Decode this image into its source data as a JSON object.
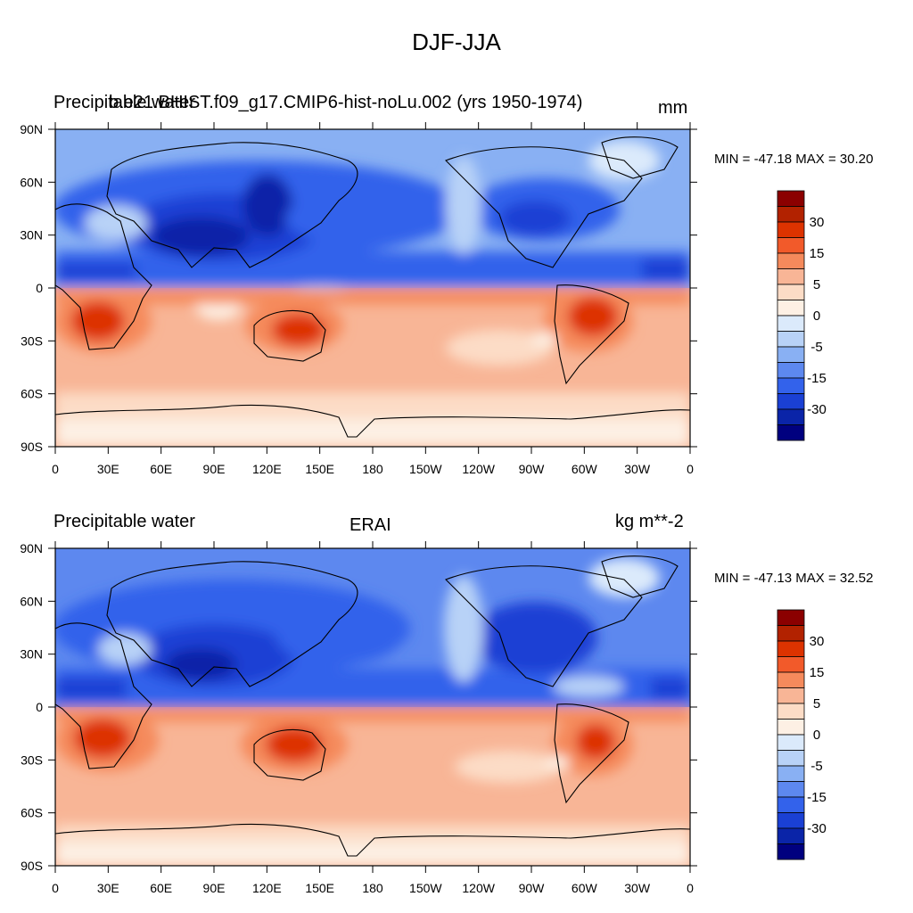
{
  "title": "DJF-JJA",
  "panels": [
    {
      "left_label": "Precipitable water",
      "center_label": "b.e21.BHIST.f09_g17.CMIP6-hist-noLu.002 (yrs 1950-1974)",
      "units": "mm",
      "stats": "MIN = -47.18 MAX =  30.20"
    },
    {
      "left_label": "Precipitable water",
      "center_label": "ERAI",
      "units": "kg m**-2",
      "stats": "MIN = -47.13 MAX =  32.52"
    }
  ],
  "axes": {
    "lat_labels": [
      "90N",
      "60N",
      "30N",
      "0",
      "30S",
      "60S",
      "90S"
    ],
    "lon_labels": [
      "0",
      "30E",
      "60E",
      "90E",
      "120E",
      "150E",
      "180",
      "150W",
      "120W",
      "90W",
      "60W",
      "30W",
      "0"
    ]
  },
  "colorbar": {
    "labels": [
      "30",
      "15",
      "5",
      "0",
      "-5",
      "-15",
      "-30"
    ],
    "colors": [
      "#8b0000",
      "#b22200",
      "#dd3300",
      "#f25a2a",
      "#f58a5c",
      "#f8b596",
      "#fcdcc6",
      "#fdf0e4",
      "#dbeafb",
      "#b8d2f7",
      "#89b0f3",
      "#5d88ef",
      "#3362eb",
      "#1a40d4",
      "#0a24a8",
      "#00007f"
    ]
  },
  "chart_data": [
    {
      "type": "heatmap",
      "title": "DJF-JJA",
      "subtitle": "b.e21.BHIST.f09_g17.CMIP6-hist-noLu.002 (yrs 1950-1974)",
      "variable": "Precipitable water",
      "units": "mm",
      "min": -47.18,
      "max": 30.2,
      "xlim": [
        0,
        360
      ],
      "ylim": [
        -90,
        90
      ],
      "contour_levels": [
        -30,
        -15,
        -5,
        0,
        5,
        15,
        30
      ]
    },
    {
      "type": "heatmap",
      "title": "DJF-JJA",
      "subtitle": "ERAI",
      "variable": "Precipitable water",
      "units": "kg m**-2",
      "min": -47.13,
      "max": 32.52,
      "xlim": [
        0,
        360
      ],
      "ylim": [
        -90,
        90
      ],
      "contour_levels": [
        -30,
        -15,
        -5,
        0,
        5,
        15,
        30
      ]
    }
  ]
}
